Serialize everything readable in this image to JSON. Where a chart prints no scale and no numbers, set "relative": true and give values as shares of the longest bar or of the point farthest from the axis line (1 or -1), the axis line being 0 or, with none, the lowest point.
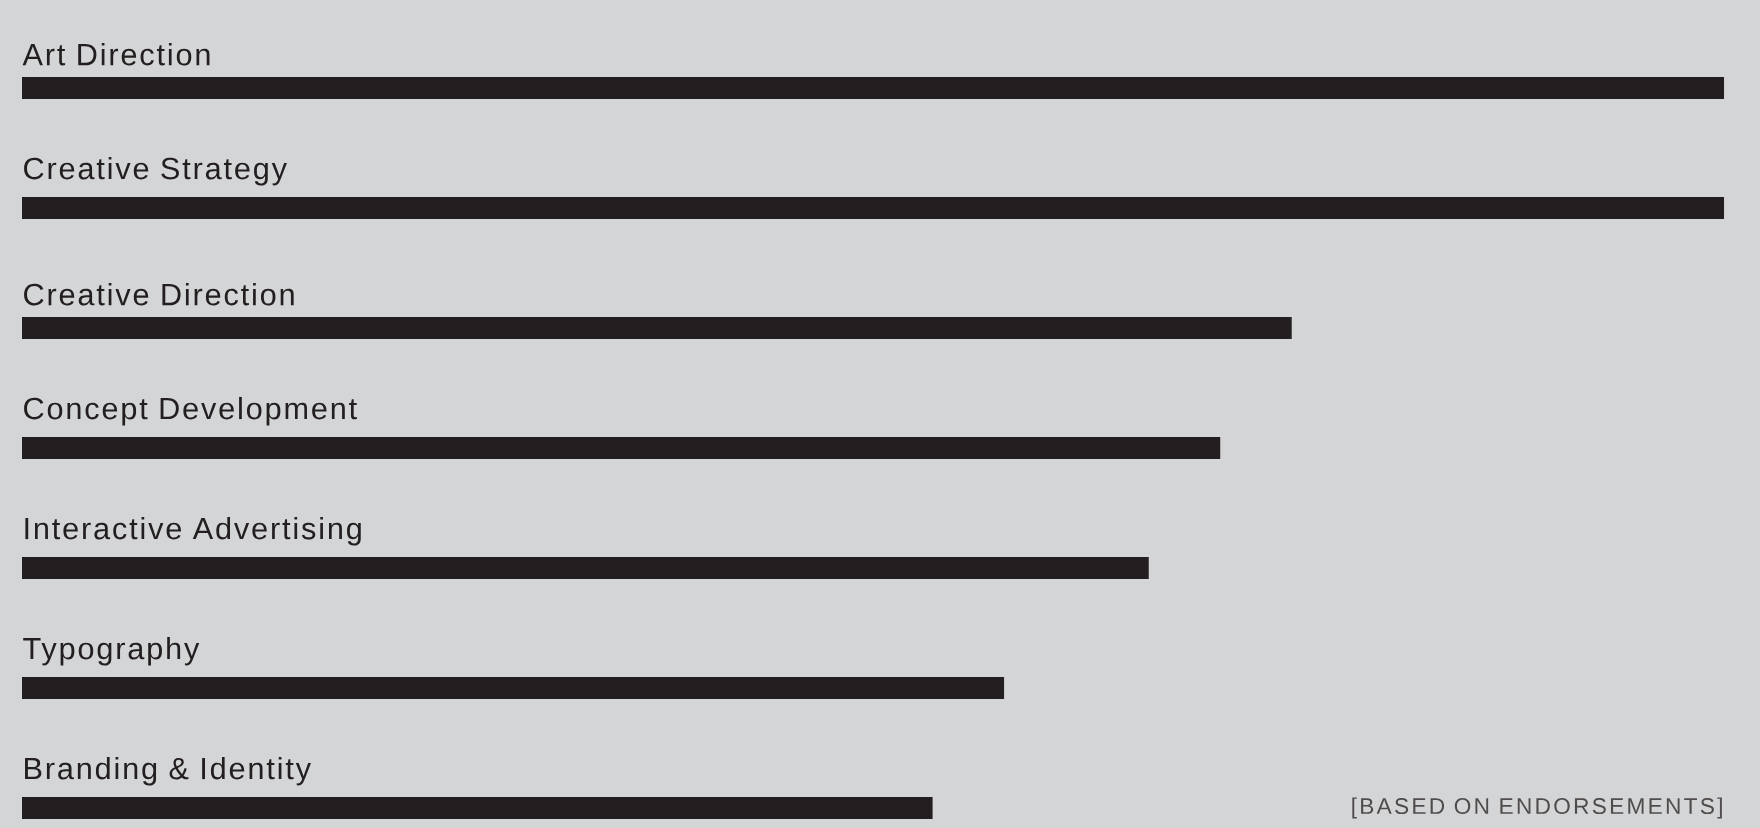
{
  "chart_data": {
    "type": "bar",
    "orientation": "horizontal",
    "relative": true,
    "color": "#231f20",
    "categories": [
      "Art Direction",
      "Creative Strategy",
      "Creative Direction",
      "Concept Development",
      "Interactive Advertising",
      "Typography",
      "Branding & Identity"
    ],
    "values": [
      1,
      1,
      0.746,
      0.704,
      0.662,
      0.577,
      0.535
    ],
    "annotations": [
      "[BASED ON ENDORSEMENTS]"
    ]
  }
}
